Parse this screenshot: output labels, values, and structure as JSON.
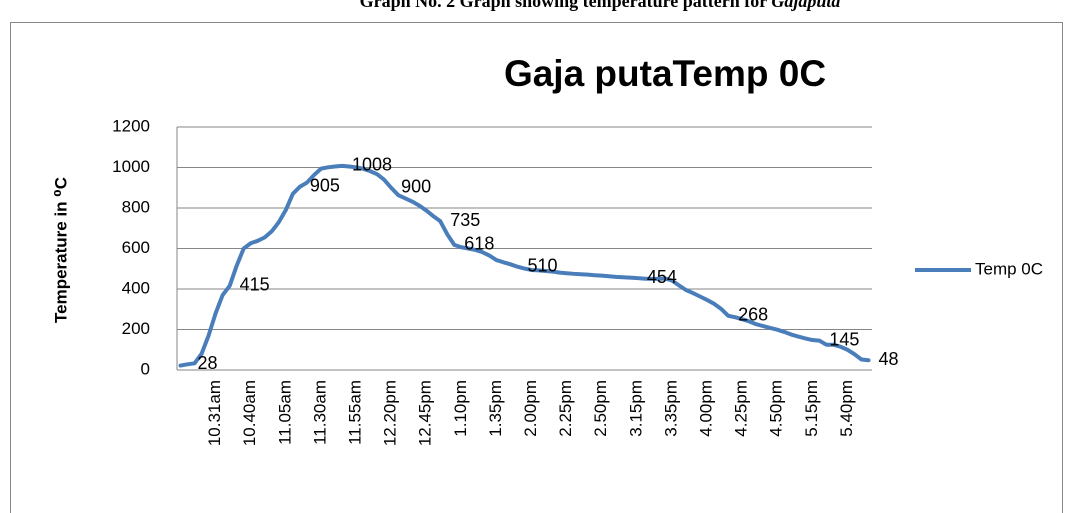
{
  "caption": {
    "text": "Graph No. 2 Graph showing temperature pattern for ",
    "emphasis": "Gajaputa"
  },
  "chart_data": {
    "type": "line",
    "title": "Gaja putaTemp 0C",
    "y_label": "Temperature in ⁰C",
    "categories": [
      null,
      null,
      null,
      null,
      null,
      "10.31am",
      null,
      null,
      null,
      null,
      "10.40am",
      null,
      null,
      null,
      null,
      "11.05am",
      null,
      null,
      null,
      null,
      "11.30am",
      null,
      null,
      null,
      null,
      "11.55am",
      null,
      null,
      null,
      null,
      "12.20pm",
      null,
      null,
      null,
      null,
      "12.45pm",
      null,
      null,
      null,
      null,
      "1.10pm",
      null,
      null,
      null,
      null,
      "1.35pm",
      null,
      null,
      null,
      null,
      "2.00pm",
      null,
      null,
      null,
      null,
      "2.25pm",
      null,
      null,
      null,
      null,
      "2.50pm",
      null,
      null,
      null,
      null,
      "3.15pm",
      null,
      null,
      null,
      null,
      "3.35pm",
      null,
      null,
      null,
      null,
      "4.00pm",
      null,
      null,
      null,
      null,
      "4.25pm",
      null,
      null,
      null,
      null,
      "4.50pm",
      null,
      null,
      null,
      null,
      "5.15pm",
      null,
      null,
      null,
      null,
      "5.40pm",
      null,
      null,
      null
    ],
    "series": [
      {
        "name": "Temp 0C",
        "color": "#4a7ebb",
        "values": [
          22,
          28,
          33,
          80,
          170,
          280,
          370,
          415,
          515,
          600,
          626,
          638,
          655,
          685,
          730,
          790,
          870,
          905,
          925,
          962,
          994,
          1001,
          1005,
          1008,
          1005,
          1001,
          994,
          982,
          967,
          940,
          900,
          864,
          848,
          832,
          812,
          788,
          760,
          735,
          670,
          618,
          606,
          600,
          593,
          582,
          565,
          543,
          532,
          522,
          510,
          501,
          494,
          492,
          489,
          486,
          481,
          478,
          475,
          473,
          471,
          468,
          466,
          463,
          460,
          458,
          456,
          454,
          451,
          450,
          450,
          452,
          442,
          418,
          395,
          380,
          363,
          346,
          327,
          302,
          268,
          261,
          251,
          240,
          226,
          217,
          208,
          199,
          188,
          175,
          165,
          156,
          148,
          145,
          125,
          125,
          115,
          100,
          78,
          52,
          48
        ],
        "value_labels": [
          null,
          "28",
          null,
          null,
          null,
          null,
          null,
          "415",
          null,
          null,
          null,
          null,
          null,
          null,
          null,
          null,
          null,
          "905",
          null,
          null,
          null,
          null,
          null,
          "1008",
          null,
          null,
          null,
          null,
          null,
          null,
          "900",
          null,
          null,
          null,
          null,
          null,
          null,
          "735",
          null,
          "618",
          null,
          null,
          null,
          null,
          null,
          null,
          null,
          null,
          "510",
          null,
          null,
          null,
          null,
          null,
          null,
          null,
          null,
          null,
          null,
          null,
          null,
          null,
          null,
          null,
          null,
          "454",
          null,
          null,
          null,
          null,
          null,
          null,
          null,
          null,
          null,
          null,
          null,
          null,
          "268",
          null,
          null,
          null,
          null,
          null,
          null,
          null,
          null,
          null,
          null,
          null,
          null,
          "145",
          null,
          null,
          null,
          null,
          null,
          null,
          "48"
        ]
      }
    ],
    "ylim": [
      0,
      1200
    ],
    "yticks": [
      0,
      200,
      400,
      600,
      800,
      1000,
      1200
    ],
    "grid": true,
    "legend": "right"
  }
}
